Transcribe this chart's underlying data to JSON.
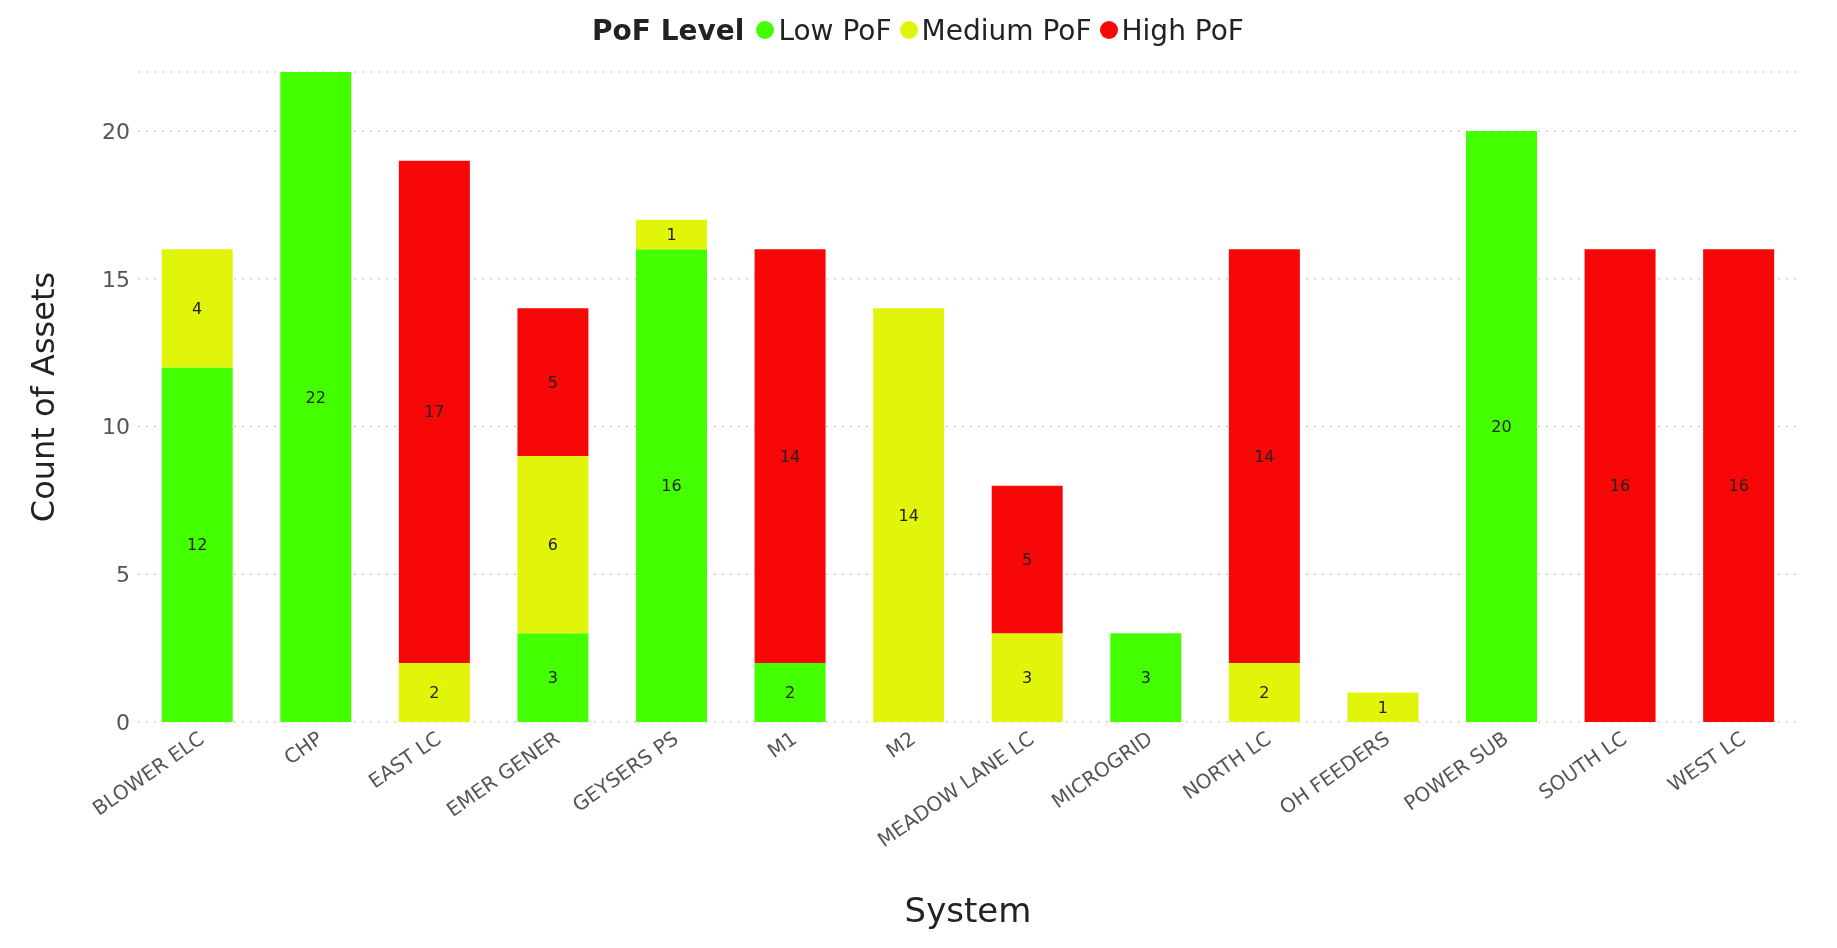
{
  "chart_data": {
    "type": "bar",
    "stacked": true,
    "xlabel": "System",
    "ylabel": "Count of Assets",
    "legend_title": "PoF Level",
    "legend": "top",
    "categories": [
      "BLOWER ELC",
      "CHP",
      "EAST LC",
      "EMER GENER",
      "GEYSERS PS",
      "M1",
      "M2",
      "MEADOW LANE LC",
      "MICROGRID",
      "NORTH LC",
      "OH FEEDERS",
      "POWER SUB",
      "SOUTH LC",
      "WEST LC"
    ],
    "series": [
      {
        "name": "Low PoF",
        "color": "#44ff00",
        "values": [
          12,
          22,
          null,
          3,
          16,
          2,
          null,
          null,
          3,
          null,
          null,
          20,
          null,
          null
        ]
      },
      {
        "name": "Medium PoF",
        "color": "#e1f50a",
        "values": [
          4,
          null,
          2,
          6,
          1,
          null,
          14,
          3,
          null,
          2,
          1,
          null,
          null,
          null
        ]
      },
      {
        "name": "High PoF",
        "color": "#f70707",
        "values": [
          null,
          null,
          17,
          5,
          null,
          14,
          null,
          5,
          null,
          14,
          null,
          null,
          16,
          16
        ]
      }
    ],
    "ylim": [
      0,
      22
    ],
    "yticks": [
      0,
      5,
      10,
      15,
      20
    ],
    "grid": "y",
    "data_labels": true
  }
}
